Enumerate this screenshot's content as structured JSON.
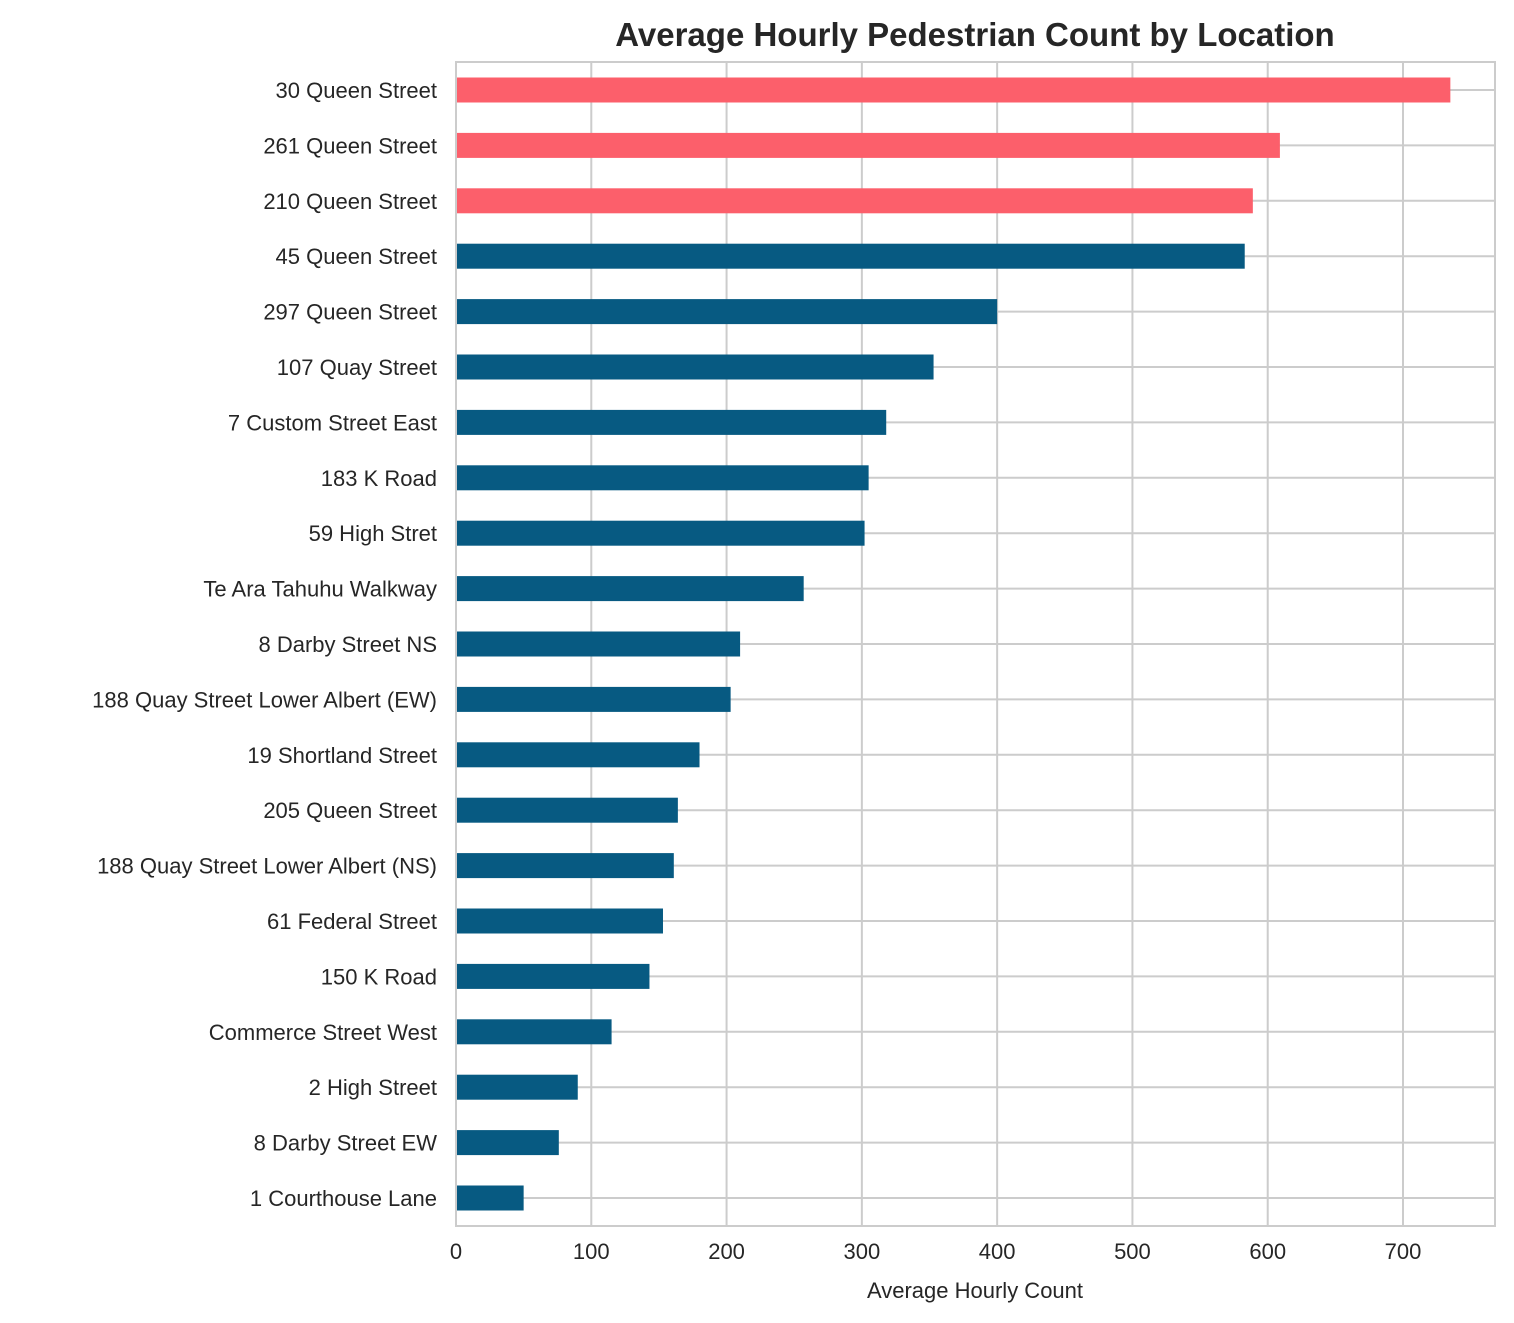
{
  "chart_data": {
    "type": "bar",
    "orientation": "horizontal",
    "title": "Average Hourly Pedestrian Count by Location",
    "xlabel": "Average Hourly Count",
    "ylabel": "",
    "xlim": [
      0,
      768
    ],
    "xticks": [
      0,
      100,
      200,
      300,
      400,
      500,
      600,
      700
    ],
    "grid": true,
    "colors": {
      "highlight": "#fc5f6b",
      "default": "#075a82",
      "grid": "#cccccc"
    },
    "categories": [
      "30 Queen Street",
      "261 Queen Street",
      "210 Queen Street",
      "45 Queen Street",
      "297 Queen Street",
      "107 Quay Street",
      "7 Custom Street East",
      "183 K Road",
      "59 High Stret",
      "Te Ara Tahuhu Walkway",
      "8 Darby Street NS",
      "188 Quay Street Lower Albert (EW)",
      "19 Shortland Street",
      "205 Queen Street",
      "188 Quay Street Lower Albert (NS)",
      "61 Federal Street",
      "150 K Road",
      "Commerce Street West",
      "2 High Street",
      "8 Darby Street EW",
      "1 Courthouse Lane"
    ],
    "values": [
      735,
      609,
      589,
      583,
      400,
      353,
      318,
      305,
      302,
      257,
      210,
      203,
      180,
      164,
      161,
      153,
      143,
      115,
      90,
      76,
      50
    ],
    "highlighted": [
      true,
      true,
      true,
      false,
      false,
      false,
      false,
      false,
      false,
      false,
      false,
      false,
      false,
      false,
      false,
      false,
      false,
      false,
      false,
      false,
      false
    ]
  }
}
